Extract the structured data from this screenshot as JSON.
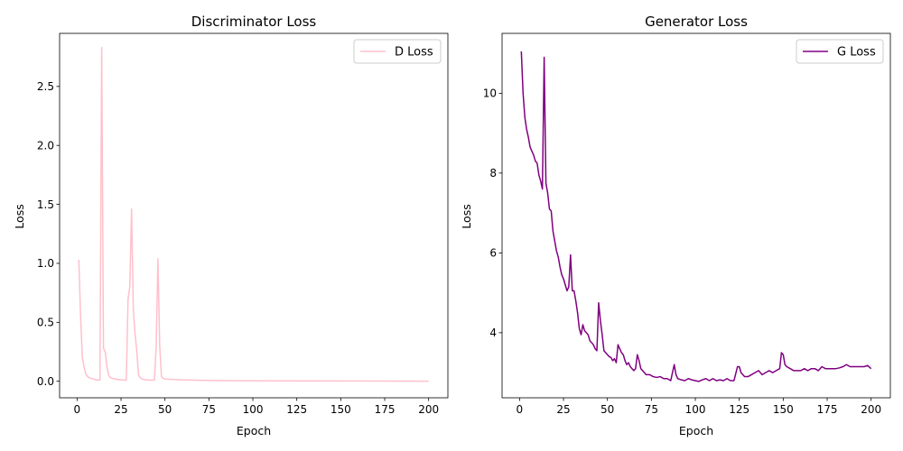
{
  "chart_data": [
    {
      "type": "line",
      "title": "Discriminator Loss",
      "xlabel": "Epoch",
      "ylabel": "Loss",
      "xlim": [
        -9.95,
        210.95
      ],
      "ylim": [
        -0.14,
        2.95
      ],
      "xticks": [
        0,
        25,
        50,
        75,
        100,
        125,
        150,
        175,
        200
      ],
      "yticks": [
        0.0,
        0.5,
        1.0,
        1.5,
        2.0,
        2.5
      ],
      "ytick_labels": [
        "0.0",
        "0.5",
        "1.0",
        "1.5",
        "2.0",
        "2.5"
      ],
      "grid": false,
      "legend_position": "upper right",
      "color": "#ffc0cb",
      "series": [
        {
          "name": "D Loss",
          "x": [
            1,
            2,
            3,
            4,
            5,
            6,
            7,
            8,
            9,
            10,
            11,
            12,
            13,
            14,
            15,
            16,
            17,
            18,
            19,
            20,
            21,
            22,
            23,
            24,
            25,
            26,
            27,
            28,
            29,
            30,
            31,
            32,
            33,
            34,
            35,
            36,
            37,
            38,
            39,
            40,
            41,
            42,
            43,
            44,
            45,
            46,
            47,
            48,
            49,
            50,
            55,
            60,
            65,
            70,
            75,
            80,
            90,
            100,
            120,
            150,
            200
          ],
          "y": [
            1.03,
            0.55,
            0.2,
            0.12,
            0.06,
            0.04,
            0.03,
            0.025,
            0.02,
            0.015,
            0.012,
            0.01,
            0.01,
            2.83,
            0.28,
            0.25,
            0.12,
            0.05,
            0.03,
            0.025,
            0.02,
            0.02,
            0.015,
            0.015,
            0.012,
            0.012,
            0.01,
            0.01,
            0.7,
            0.8,
            1.46,
            0.6,
            0.4,
            0.25,
            0.05,
            0.03,
            0.02,
            0.015,
            0.012,
            0.012,
            0.01,
            0.01,
            0.01,
            0.01,
            0.3,
            1.04,
            0.3,
            0.04,
            0.025,
            0.02,
            0.015,
            0.012,
            0.01,
            0.008,
            0.007,
            0.006,
            0.005,
            0.004,
            0.003,
            0.002,
            0.001
          ]
        }
      ]
    },
    {
      "type": "line",
      "title": "Generator Loss",
      "xlabel": "Epoch",
      "ylabel": "Loss",
      "xlim": [
        -9.95,
        210.95
      ],
      "ylim": [
        2.37,
        11.5
      ],
      "xticks": [
        0,
        25,
        50,
        75,
        100,
        125,
        150,
        175,
        200
      ],
      "yticks": [
        4,
        6,
        8,
        10
      ],
      "ytick_labels": [
        "4",
        "6",
        "8",
        "10"
      ],
      "grid": false,
      "legend_position": "upper right",
      "color": "#800080",
      "series": [
        {
          "name": "G Loss",
          "x": [
            1,
            2,
            3,
            4,
            5,
            6,
            7,
            8,
            9,
            10,
            11,
            12,
            13,
            14,
            15,
            16,
            17,
            18,
            19,
            20,
            21,
            22,
            23,
            24,
            25,
            26,
            27,
            28,
            29,
            30,
            31,
            32,
            33,
            34,
            35,
            36,
            37,
            38,
            39,
            40,
            41,
            42,
            43,
            44,
            45,
            46,
            47,
            48,
            49,
            50,
            51,
            52,
            53,
            54,
            55,
            56,
            57,
            58,
            59,
            60,
            61,
            62,
            63,
            64,
            65,
            66,
            67,
            68,
            69,
            70,
            72,
            74,
            76,
            78,
            80,
            82,
            84,
            86,
            88,
            89,
            90,
            92,
            94,
            96,
            98,
            100,
            102,
            104,
            106,
            108,
            110,
            112,
            114,
            116,
            118,
            120,
            122,
            124,
            125,
            126,
            128,
            130,
            132,
            134,
            136,
            138,
            140,
            142,
            144,
            146,
            148,
            149,
            150,
            151,
            152,
            154,
            156,
            158,
            160,
            162,
            164,
            166,
            168,
            170,
            172,
            174,
            176,
            178,
            180,
            182,
            184,
            186,
            188,
            190,
            192,
            194,
            196,
            198,
            200
          ],
          "y": [
            11.05,
            10.0,
            9.4,
            9.1,
            8.9,
            8.65,
            8.55,
            8.45,
            8.3,
            8.25,
            7.95,
            7.8,
            7.6,
            10.9,
            7.75,
            7.5,
            7.1,
            7.05,
            6.55,
            6.3,
            6.05,
            5.9,
            5.65,
            5.45,
            5.35,
            5.2,
            5.05,
            5.15,
            5.95,
            5.05,
            5.05,
            4.8,
            4.5,
            4.1,
            3.95,
            4.2,
            4.05,
            4.0,
            3.95,
            3.8,
            3.75,
            3.7,
            3.6,
            3.55,
            4.75,
            4.3,
            3.95,
            3.55,
            3.5,
            3.45,
            3.4,
            3.38,
            3.3,
            3.35,
            3.25,
            3.7,
            3.6,
            3.5,
            3.45,
            3.3,
            3.2,
            3.25,
            3.15,
            3.1,
            3.05,
            3.1,
            3.45,
            3.3,
            3.1,
            3.05,
            2.95,
            2.95,
            2.9,
            2.88,
            2.9,
            2.85,
            2.85,
            2.8,
            3.2,
            2.95,
            2.85,
            2.82,
            2.8,
            2.85,
            2.82,
            2.8,
            2.78,
            2.82,
            2.85,
            2.8,
            2.85,
            2.8,
            2.82,
            2.8,
            2.85,
            2.8,
            2.8,
            3.15,
            3.15,
            3.0,
            2.9,
            2.9,
            2.95,
            3.0,
            3.05,
            2.95,
            3.0,
            3.05,
            3.0,
            3.05,
            3.1,
            3.5,
            3.45,
            3.2,
            3.15,
            3.1,
            3.05,
            3.05,
            3.05,
            3.1,
            3.05,
            3.1,
            3.1,
            3.05,
            3.15,
            3.1,
            3.1,
            3.1,
            3.1,
            3.12,
            3.15,
            3.2,
            3.15,
            3.15,
            3.15,
            3.15,
            3.15,
            3.18,
            3.1
          ]
        }
      ]
    }
  ]
}
